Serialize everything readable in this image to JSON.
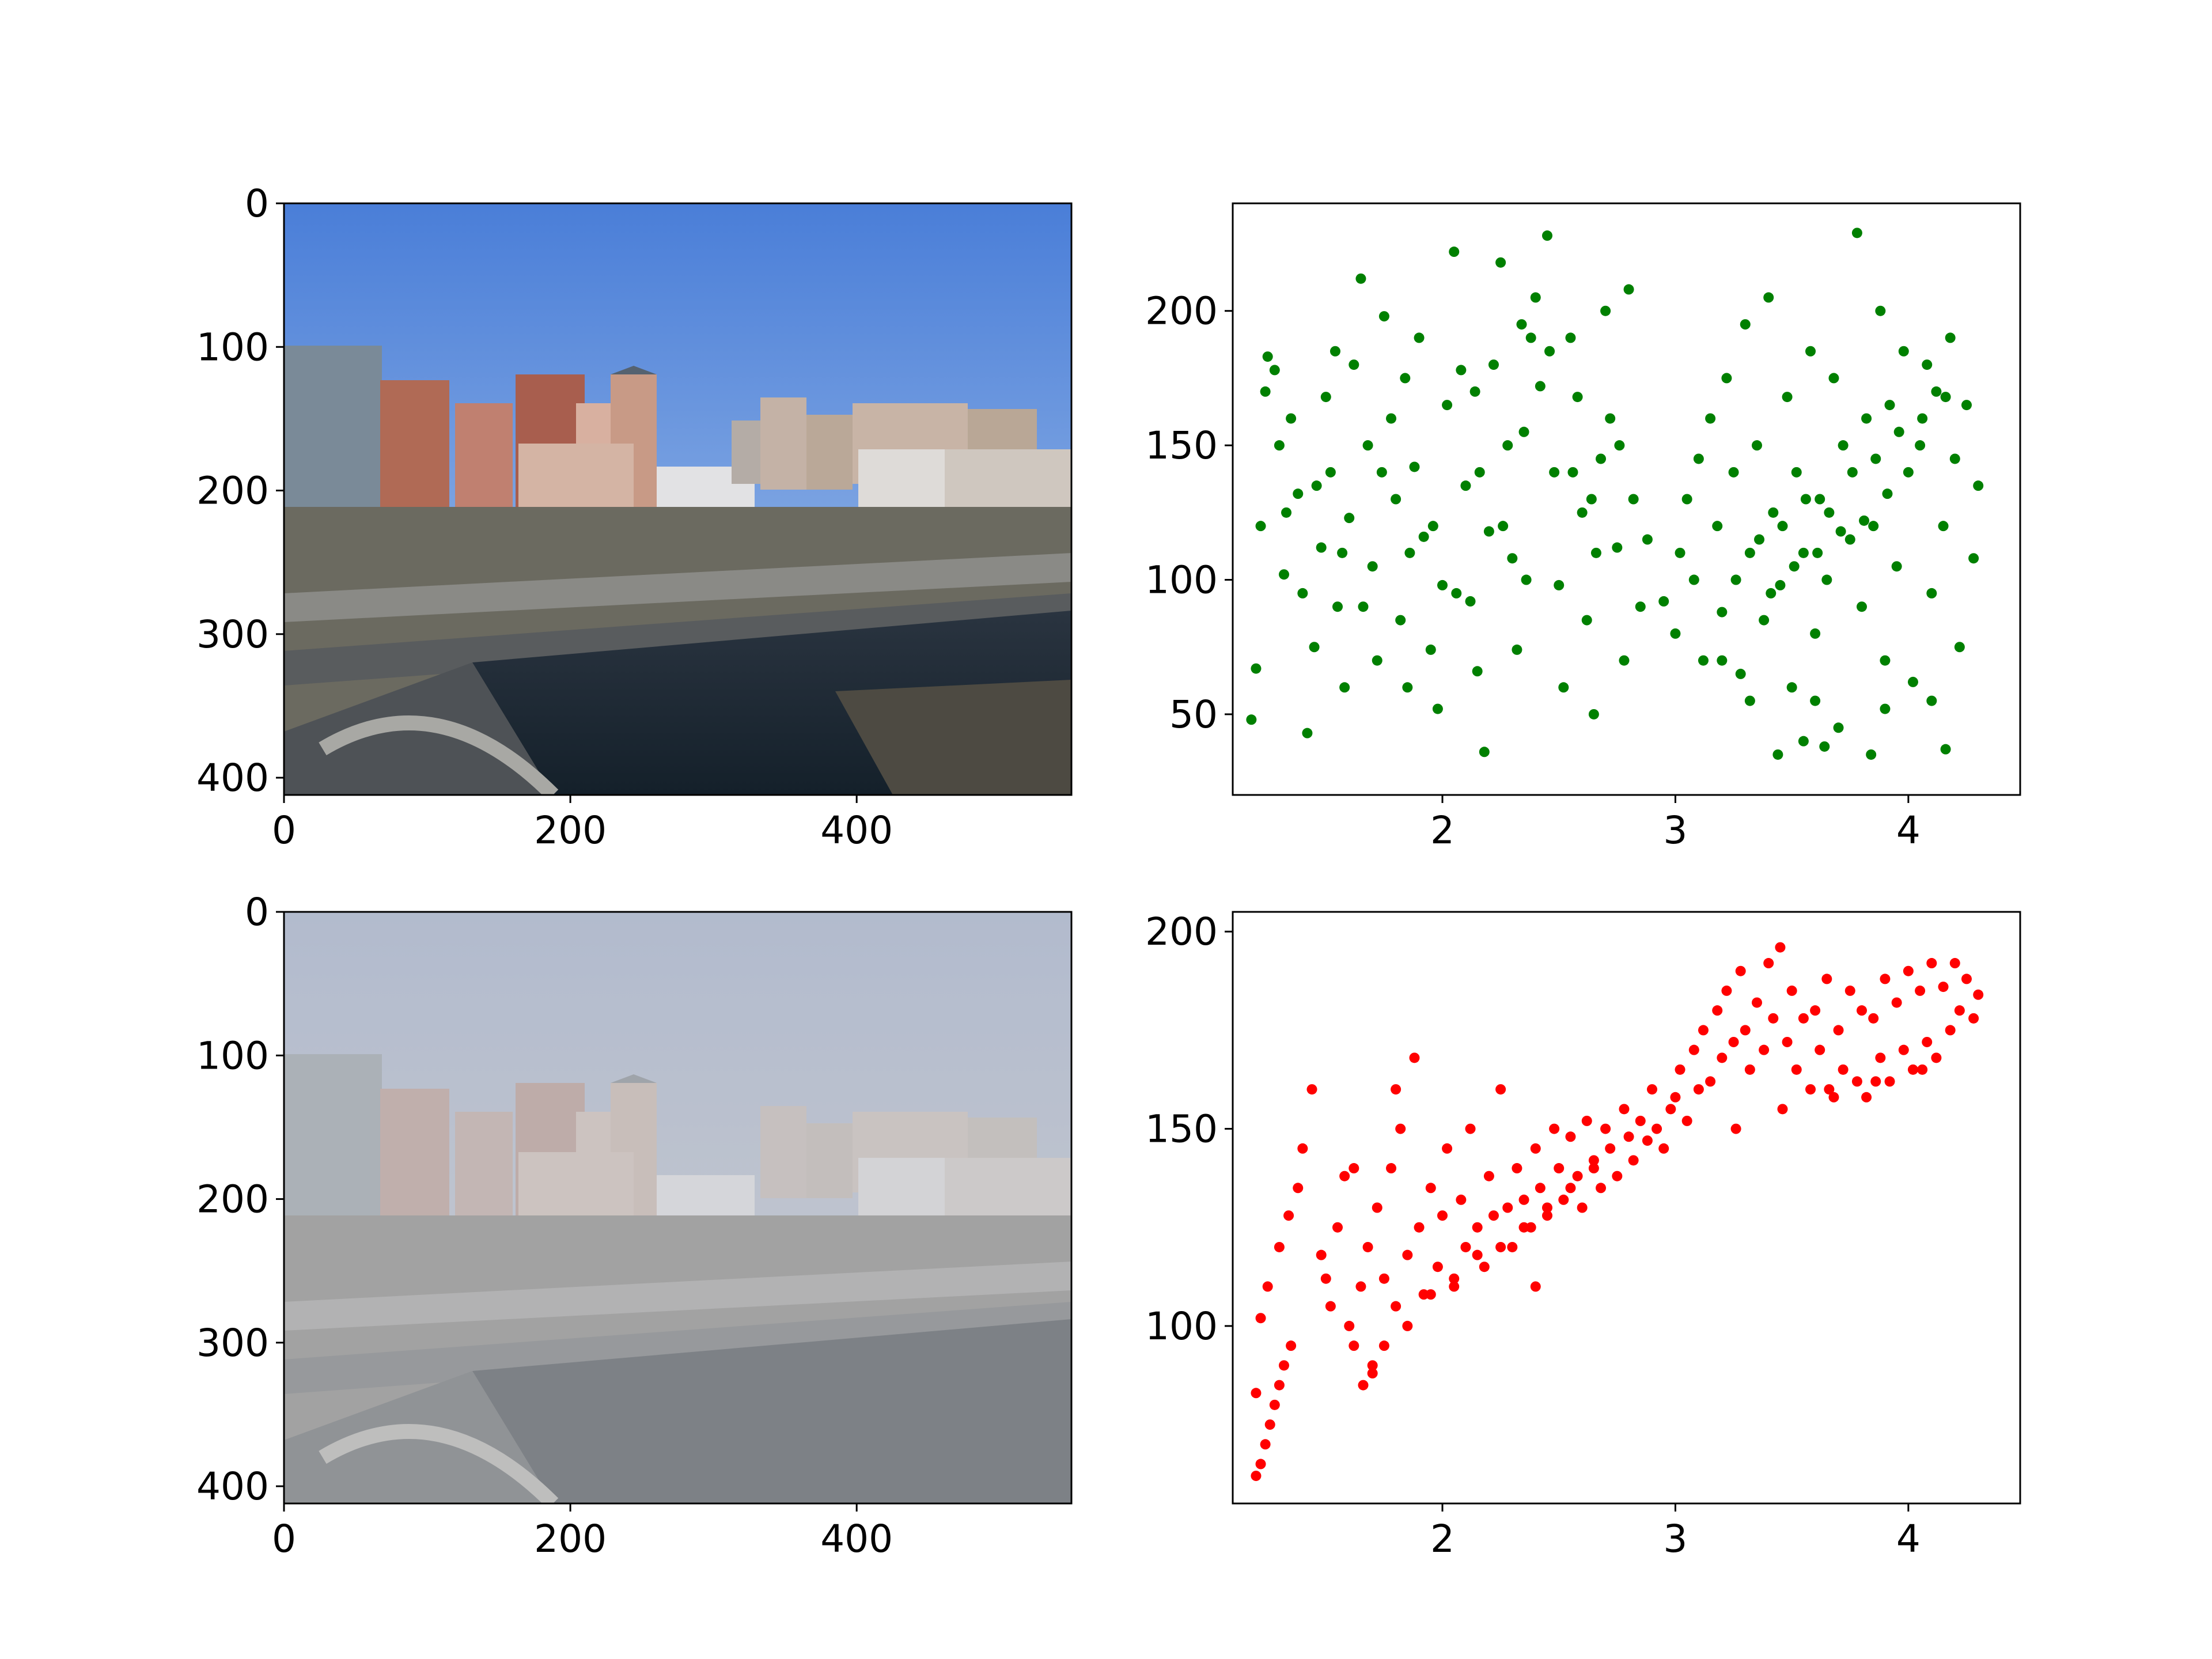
{
  "colors": {
    "green_points": "#008000",
    "red_points": "#ff0000",
    "axis": "#000000",
    "sky_clear_top": "#4a7ed8",
    "sky_clear_bottom": "#9bbbe6",
    "sky_hazy_top": "#a4b0c8",
    "sky_hazy_bottom": "#c2c6cc"
  },
  "chart_data": [
    {
      "type": "image",
      "name": "clear-city-photo",
      "description_kind": "photograph of city skyline and river, clear sky",
      "xlim": [
        0,
        550
      ],
      "ylim": [
        412,
        0
      ],
      "xticks": [
        0,
        200,
        400
      ],
      "xtick_labels": [
        "0",
        "200",
        "400"
      ],
      "yticks": [
        0,
        100,
        200,
        300,
        400
      ],
      "ytick_labels": [
        "0",
        "100",
        "200",
        "300",
        "400"
      ]
    },
    {
      "type": "scatter",
      "name": "green-scatter",
      "color": "#008000",
      "xlim": [
        1.1,
        4.48
      ],
      "ylim": [
        20,
        240
      ],
      "xticks": [
        2,
        3,
        4
      ],
      "xtick_labels": [
        "2",
        "3",
        "4"
      ],
      "yticks": [
        50,
        100,
        150,
        200
      ],
      "ytick_labels": [
        "50",
        "100",
        "150",
        "200"
      ],
      "points": [
        [
          1.18,
          48
        ],
        [
          1.2,
          67
        ],
        [
          1.22,
          120
        ],
        [
          1.24,
          170
        ],
        [
          1.25,
          183
        ],
        [
          1.28,
          178
        ],
        [
          1.3,
          150
        ],
        [
          1.32,
          102
        ],
        [
          1.35,
          160
        ],
        [
          1.38,
          132
        ],
        [
          1.4,
          95
        ],
        [
          1.42,
          43
        ],
        [
          1.45,
          75
        ],
        [
          1.48,
          112
        ],
        [
          1.5,
          168
        ],
        [
          1.52,
          140
        ],
        [
          1.55,
          90
        ],
        [
          1.58,
          60
        ],
        [
          1.6,
          123
        ],
        [
          1.62,
          180
        ],
        [
          1.65,
          212
        ],
        [
          1.68,
          150
        ],
        [
          1.7,
          105
        ],
        [
          1.72,
          70
        ],
        [
          1.75,
          198
        ],
        [
          1.78,
          160
        ],
        [
          1.8,
          130
        ],
        [
          1.82,
          85
        ],
        [
          1.85,
          60
        ],
        [
          1.88,
          142
        ],
        [
          1.9,
          190
        ],
        [
          1.92,
          116
        ],
        [
          1.95,
          74
        ],
        [
          1.98,
          52
        ],
        [
          2.0,
          98
        ],
        [
          2.02,
          165
        ],
        [
          2.05,
          222
        ],
        [
          2.08,
          178
        ],
        [
          2.1,
          135
        ],
        [
          2.12,
          92
        ],
        [
          2.15,
          66
        ],
        [
          2.18,
          36
        ],
        [
          2.2,
          118
        ],
        [
          2.22,
          180
        ],
        [
          2.25,
          218
        ],
        [
          2.28,
          150
        ],
        [
          2.3,
          108
        ],
        [
          2.32,
          74
        ],
        [
          2.35,
          155
        ],
        [
          2.38,
          190
        ],
        [
          2.4,
          205
        ],
        [
          2.42,
          172
        ],
        [
          2.45,
          228
        ],
        [
          2.48,
          140
        ],
        [
          2.5,
          98
        ],
        [
          2.52,
          60
        ],
        [
          2.55,
          190
        ],
        [
          2.58,
          168
        ],
        [
          2.6,
          125
        ],
        [
          2.62,
          85
        ],
        [
          2.65,
          50
        ],
        [
          2.68,
          145
        ],
        [
          2.7,
          200
        ],
        [
          2.72,
          160
        ],
        [
          2.75,
          112
        ],
        [
          2.78,
          70
        ],
        [
          2.8,
          208
        ],
        [
          2.82,
          130
        ],
        [
          2.85,
          90
        ],
        [
          2.88,
          115
        ],
        [
          1.33,
          125
        ],
        [
          1.46,
          135
        ],
        [
          1.57,
          110
        ],
        [
          1.66,
          90
        ],
        [
          1.74,
          140
        ],
        [
          1.86,
          110
        ],
        [
          1.96,
          120
        ],
        [
          2.06,
          95
        ],
        [
          2.16,
          140
        ],
        [
          2.26,
          120
        ],
        [
          2.36,
          100
        ],
        [
          2.46,
          185
        ],
        [
          2.56,
          140
        ],
        [
          2.66,
          110
        ],
        [
          2.76,
          150
        ],
        [
          1.54,
          185
        ],
        [
          1.84,
          175
        ],
        [
          2.14,
          170
        ],
        [
          2.34,
          195
        ],
        [
          2.64,
          130
        ],
        [
          2.95,
          92
        ],
        [
          3.0,
          80
        ],
        [
          3.02,
          110
        ],
        [
          3.05,
          130
        ],
        [
          3.08,
          100
        ],
        [
          3.1,
          145
        ],
        [
          3.12,
          70
        ],
        [
          3.15,
          160
        ],
        [
          3.18,
          120
        ],
        [
          3.2,
          88
        ],
        [
          3.22,
          175
        ],
        [
          3.25,
          140
        ],
        [
          3.28,
          65
        ],
        [
          3.3,
          195
        ],
        [
          3.32,
          110
        ],
        [
          3.35,
          150
        ],
        [
          3.38,
          85
        ],
        [
          3.4,
          205
        ],
        [
          3.42,
          125
        ],
        [
          3.45,
          98
        ],
        [
          3.48,
          168
        ],
        [
          3.5,
          60
        ],
        [
          3.52,
          140
        ],
        [
          3.55,
          110
        ],
        [
          3.58,
          185
        ],
        [
          3.6,
          80
        ],
        [
          3.62,
          130
        ],
        [
          3.65,
          100
        ],
        [
          3.68,
          175
        ],
        [
          3.7,
          45
        ],
        [
          3.72,
          150
        ],
        [
          3.75,
          115
        ],
        [
          3.78,
          229
        ],
        [
          3.8,
          90
        ],
        [
          3.82,
          160
        ],
        [
          3.85,
          120
        ],
        [
          3.88,
          200
        ],
        [
          3.9,
          70
        ],
        [
          3.92,
          165
        ],
        [
          3.95,
          105
        ],
        [
          3.98,
          185
        ],
        [
          4.0,
          140
        ],
        [
          4.02,
          62
        ],
        [
          4.05,
          150
        ],
        [
          4.08,
          180
        ],
        [
          4.1,
          95
        ],
        [
          4.12,
          170
        ],
        [
          4.15,
          120
        ],
        [
          4.18,
          190
        ],
        [
          4.2,
          145
        ],
        [
          4.22,
          75
        ],
        [
          4.25,
          165
        ],
        [
          4.28,
          108
        ],
        [
          4.3,
          135
        ],
        [
          3.26,
          100
        ],
        [
          3.36,
          115
        ],
        [
          3.46,
          120
        ],
        [
          3.56,
          130
        ],
        [
          3.66,
          125
        ],
        [
          3.76,
          140
        ],
        [
          3.86,
          145
        ],
        [
          3.96,
          155
        ],
        [
          4.06,
          160
        ],
        [
          4.16,
          168
        ],
        [
          3.41,
          95
        ],
        [
          3.51,
          105
        ],
        [
          3.61,
          110
        ],
        [
          3.71,
          118
        ],
        [
          3.81,
          122
        ],
        [
          3.91,
          132
        ],
        [
          3.44,
          35
        ],
        [
          3.55,
          40
        ],
        [
          3.64,
          38
        ],
        [
          3.84,
          35
        ],
        [
          4.16,
          37
        ],
        [
          3.32,
          55
        ],
        [
          3.6,
          55
        ],
        [
          3.9,
          52
        ],
        [
          4.1,
          55
        ],
        [
          3.2,
          70
        ]
      ]
    },
    {
      "type": "image",
      "name": "hazy-city-photo",
      "description_kind": "photograph of city skyline and river, hazy",
      "xlim": [
        0,
        550
      ],
      "ylim": [
        412,
        0
      ],
      "xticks": [
        0,
        200,
        400
      ],
      "xtick_labels": [
        "0",
        "200",
        "400"
      ],
      "yticks": [
        0,
        100,
        200,
        300,
        400
      ],
      "ytick_labels": [
        "0",
        "100",
        "200",
        "300",
        "400"
      ]
    },
    {
      "type": "scatter",
      "name": "red-scatter",
      "color": "#ff0000",
      "xlim": [
        1.1,
        4.48
      ],
      "ylim": [
        55,
        205
      ],
      "xticks": [
        2,
        3,
        4
      ],
      "xtick_labels": [
        "2",
        "3",
        "4"
      ],
      "yticks": [
        100,
        150,
        200
      ],
      "ytick_labels": [
        "100",
        "150",
        "200"
      ],
      "points": [
        [
          1.2,
          62
        ],
        [
          1.22,
          65
        ],
        [
          1.24,
          70
        ],
        [
          1.26,
          75
        ],
        [
          1.28,
          80
        ],
        [
          1.3,
          85
        ],
        [
          1.32,
          90
        ],
        [
          1.35,
          95
        ],
        [
          1.2,
          83
        ],
        [
          1.22,
          102
        ],
        [
          1.25,
          110
        ],
        [
          1.3,
          120
        ],
        [
          1.34,
          128
        ],
        [
          1.38,
          135
        ],
        [
          1.4,
          145
        ],
        [
          1.44,
          160
        ],
        [
          1.48,
          118
        ],
        [
          1.52,
          105
        ],
        [
          1.55,
          125
        ],
        [
          1.58,
          138
        ],
        [
          1.6,
          100
        ],
        [
          1.62,
          95
        ],
        [
          1.65,
          110
        ],
        [
          1.68,
          120
        ],
        [
          1.7,
          90
        ],
        [
          1.72,
          130
        ],
        [
          1.75,
          112
        ],
        [
          1.78,
          140
        ],
        [
          1.8,
          105
        ],
        [
          1.82,
          150
        ],
        [
          1.85,
          118
        ],
        [
          1.88,
          168
        ],
        [
          1.9,
          125
        ],
        [
          1.92,
          108
        ],
        [
          1.95,
          135
        ],
        [
          1.98,
          115
        ],
        [
          2.0,
          128
        ],
        [
          2.02,
          145
        ],
        [
          2.05,
          110
        ],
        [
          2.08,
          132
        ],
        [
          2.1,
          120
        ],
        [
          2.12,
          150
        ],
        [
          2.15,
          125
        ],
        [
          2.18,
          115
        ],
        [
          2.2,
          138
        ],
        [
          2.22,
          128
        ],
        [
          2.25,
          160
        ],
        [
          2.28,
          130
        ],
        [
          2.3,
          120
        ],
        [
          2.32,
          140
        ],
        [
          2.35,
          132
        ],
        [
          2.38,
          125
        ],
        [
          2.4,
          145
        ],
        [
          2.42,
          135
        ],
        [
          2.45,
          128
        ],
        [
          2.48,
          150
        ],
        [
          2.5,
          140
        ],
        [
          2.52,
          132
        ],
        [
          2.55,
          148
        ],
        [
          2.58,
          138
        ],
        [
          2.6,
          130
        ],
        [
          2.62,
          152
        ],
        [
          2.65,
          142
        ],
        [
          2.68,
          135
        ],
        [
          2.7,
          150
        ],
        [
          2.72,
          145
        ],
        [
          2.75,
          138
        ],
        [
          2.78,
          155
        ],
        [
          2.8,
          148
        ],
        [
          2.82,
          142
        ],
        [
          2.85,
          152
        ],
        [
          2.88,
          147
        ],
        [
          2.9,
          160
        ],
        [
          2.92,
          150
        ],
        [
          2.95,
          145
        ],
        [
          2.98,
          155
        ],
        [
          3.0,
          158
        ],
        [
          3.02,
          165
        ],
        [
          3.05,
          152
        ],
        [
          3.08,
          170
        ],
        [
          3.1,
          160
        ],
        [
          3.12,
          175
        ],
        [
          3.15,
          162
        ],
        [
          3.18,
          180
        ],
        [
          3.2,
          168
        ],
        [
          3.22,
          185
        ],
        [
          3.25,
          172
        ],
        [
          3.28,
          190
        ],
        [
          3.3,
          175
        ],
        [
          3.32,
          165
        ],
        [
          3.35,
          182
        ],
        [
          3.38,
          170
        ],
        [
          3.4,
          192
        ],
        [
          3.42,
          178
        ],
        [
          3.45,
          196
        ],
        [
          3.48,
          172
        ],
        [
          3.5,
          185
        ],
        [
          3.52,
          165
        ],
        [
          3.55,
          178
        ],
        [
          3.58,
          160
        ],
        [
          3.6,
          180
        ],
        [
          3.62,
          170
        ],
        [
          3.65,
          188
        ],
        [
          3.68,
          158
        ],
        [
          3.7,
          175
        ],
        [
          3.72,
          165
        ],
        [
          3.75,
          185
        ],
        [
          3.78,
          162
        ],
        [
          3.8,
          180
        ],
        [
          3.82,
          158
        ],
        [
          3.85,
          178
        ],
        [
          3.88,
          168
        ],
        [
          3.9,
          188
        ],
        [
          3.92,
          162
        ],
        [
          3.95,
          182
        ],
        [
          3.98,
          170
        ],
        [
          4.0,
          190
        ],
        [
          4.02,
          165
        ],
        [
          4.05,
          185
        ],
        [
          4.08,
          172
        ],
        [
          4.1,
          192
        ],
        [
          4.12,
          168
        ],
        [
          4.15,
          186
        ],
        [
          4.18,
          175
        ],
        [
          4.2,
          192
        ],
        [
          4.22,
          180
        ],
        [
          4.25,
          188
        ],
        [
          4.28,
          178
        ],
        [
          4.3,
          184
        ],
        [
          3.26,
          150
        ],
        [
          3.46,
          155
        ],
        [
          3.66,
          160
        ],
        [
          3.86,
          162
        ],
        [
          4.06,
          165
        ],
        [
          1.75,
          95
        ],
        [
          1.85,
          100
        ],
        [
          1.95,
          108
        ],
        [
          2.05,
          112
        ],
        [
          2.15,
          118
        ],
        [
          2.25,
          120
        ],
        [
          2.35,
          125
        ],
        [
          2.45,
          130
        ],
        [
          2.55,
          135
        ],
        [
          2.65,
          140
        ],
        [
          1.5,
          112
        ],
        [
          1.62,
          140
        ],
        [
          1.8,
          160
        ],
        [
          1.7,
          88
        ],
        [
          1.66,
          85
        ],
        [
          2.4,
          110
        ]
      ]
    }
  ]
}
